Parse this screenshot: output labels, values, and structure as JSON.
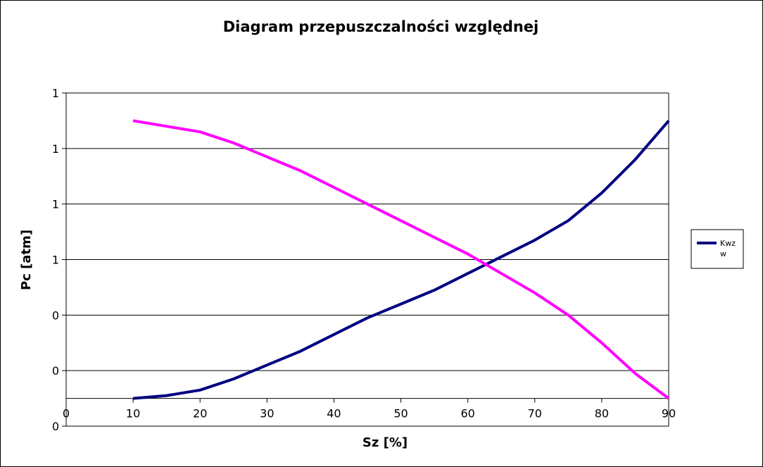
{
  "chart_data": {
    "type": "line",
    "title": "Diagram przepuszczalności względnej",
    "xlabel": "Sz [%]",
    "ylabel": "Pc [atm]",
    "x_ticks": [
      "0",
      "10",
      "20",
      "30",
      "40",
      "50",
      "60",
      "70",
      "80",
      "90"
    ],
    "y_tick_labels": [
      "1",
      "1",
      "1",
      "1",
      "0",
      "0",
      "0"
    ],
    "xlim": [
      0,
      90
    ],
    "ylim": [
      0,
      1.2
    ],
    "grid": "horizontal",
    "legend_position": "right",
    "legend_entries": [
      "Kwz",
      "w"
    ],
    "series": [
      {
        "name": "Kwz",
        "color": "#000080",
        "x": [
          10,
          15,
          20,
          25,
          30,
          35,
          40,
          45,
          50,
          55,
          60,
          65,
          70,
          75,
          80,
          85,
          90
        ],
        "y": [
          0.1,
          0.11,
          0.13,
          0.17,
          0.22,
          0.27,
          0.33,
          0.39,
          0.44,
          0.49,
          0.55,
          0.61,
          0.67,
          0.74,
          0.84,
          0.96,
          1.1
        ]
      },
      {
        "name": "",
        "color": "#FF00FF",
        "x": [
          10,
          15,
          20,
          25,
          30,
          35,
          40,
          45,
          50,
          55,
          60,
          65,
          70,
          75,
          80,
          85,
          90
        ],
        "y": [
          1.1,
          1.08,
          1.06,
          1.02,
          0.97,
          0.92,
          0.86,
          0.8,
          0.74,
          0.68,
          0.62,
          0.55,
          0.48,
          0.4,
          0.3,
          0.19,
          0.1
        ]
      }
    ]
  }
}
